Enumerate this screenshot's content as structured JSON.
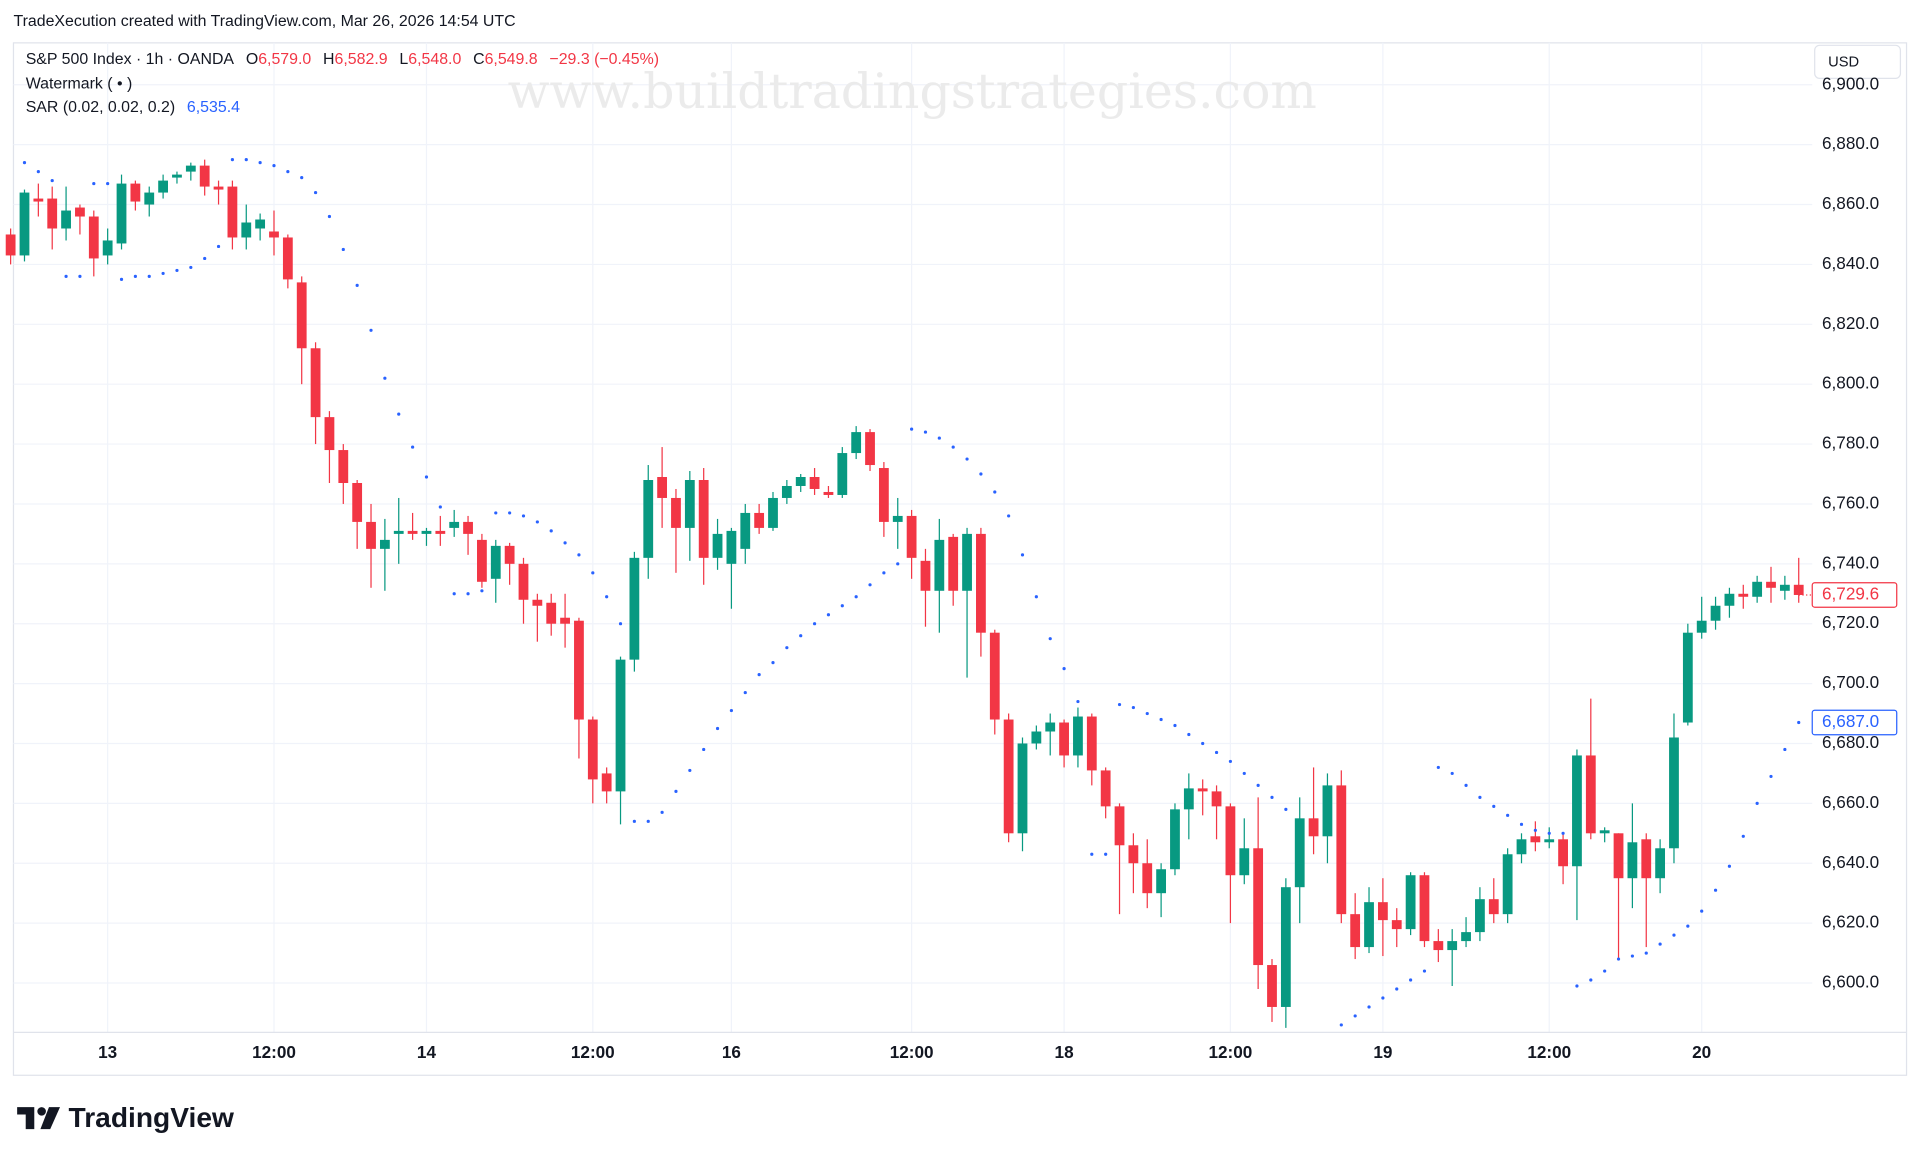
{
  "chart_data": {
    "type": "candlestick",
    "attribution": "TradeXecution created with TradingView.com, Mar 26, 2026 14:54 UTC",
    "symbol": "S&P 500 Index · 1h · OANDA",
    "ohlc_legend": {
      "o_label": "O",
      "o": "6,579.0",
      "h_label": "H",
      "h": "6,582.9",
      "l_label": "L",
      "l": "6,548.0",
      "c_label": "C",
      "c": "6,549.8",
      "change": "−29.3 (−0.45%)"
    },
    "watermark_legend": "Watermark ( • )",
    "sar_legend": {
      "name": "SAR (0.02, 0.02, 0.2)",
      "value": "6,535.4"
    },
    "watermark": "www.buildtradingstrategies.com",
    "currency": "USD",
    "brand": "TradingView",
    "up_color": "#089981",
    "down_color": "#f23645",
    "sar_color": "#2962ff",
    "grid": true,
    "ylim": [
      6583.5,
      6914
    ],
    "yticks": [
      {
        "value": 6600,
        "label": "6,600.0"
      },
      {
        "value": 6620,
        "label": "6,620.0"
      },
      {
        "value": 6640,
        "label": "6,640.0"
      },
      {
        "value": 6660,
        "label": "6,660.0"
      },
      {
        "value": 6680,
        "label": "6,680.0"
      },
      {
        "value": 6700,
        "label": "6,700.0"
      },
      {
        "value": 6720,
        "label": "6,720.0"
      },
      {
        "value": 6740,
        "label": "6,740.0"
      },
      {
        "value": 6760,
        "label": "6,760.0"
      },
      {
        "value": 6780,
        "label": "6,780.0"
      },
      {
        "value": 6800,
        "label": "6,800.0"
      },
      {
        "value": 6820,
        "label": "6,820.0"
      },
      {
        "value": 6840,
        "label": "6,840.0"
      },
      {
        "value": 6860,
        "label": "6,860.0"
      },
      {
        "value": 6880,
        "label": "6,880.0"
      },
      {
        "value": 6900,
        "label": "6,900.0"
      }
    ],
    "categories": [
      null,
      null,
      null,
      null,
      null,
      null,
      null,
      "13",
      null,
      null,
      null,
      null,
      null,
      null,
      null,
      null,
      null,
      null,
      null,
      "12:00",
      null,
      null,
      null,
      null,
      null,
      null,
      null,
      null,
      null,
      null,
      "14",
      null,
      null,
      null,
      null,
      null,
      null,
      null,
      null,
      null,
      null,
      null,
      "12:00",
      null,
      null,
      null,
      null,
      null,
      null,
      null,
      null,
      null,
      "16",
      null,
      null,
      null,
      null,
      null,
      null,
      null,
      null,
      null,
      null,
      null,
      null,
      "12:00",
      null,
      null,
      null,
      null,
      null,
      null,
      null,
      null,
      null,
      null,
      "18",
      null,
      null,
      null,
      null,
      null,
      null,
      null,
      null,
      null,
      null,
      null,
      "12:00",
      null,
      null,
      null,
      null,
      null,
      null,
      null,
      null,
      null,
      null,
      "19",
      null,
      null,
      null,
      null,
      null,
      null,
      null,
      null,
      null,
      null,
      null,
      "12:00",
      null,
      null,
      null,
      null,
      null,
      null,
      null,
      null,
      null,
      null,
      "20",
      null,
      null,
      null,
      null,
      null,
      null,
      null
    ],
    "open": [
      6850,
      6843,
      6862,
      6862,
      6852,
      6859,
      6856,
      6843,
      6847,
      6867,
      6860,
      6864,
      6869,
      6871,
      6873,
      6866,
      6866,
      6849,
      6852,
      6851,
      6849,
      6834,
      6812,
      6789,
      6778,
      6767,
      6754,
      6745,
      6750,
      6751,
      6750,
      6751,
      6752,
      6754,
      6748,
      6735,
      6746,
      6740,
      6728,
      6727,
      6722,
      6721,
      6688,
      6670,
      6664,
      6708,
      6742,
      6769,
      6762,
      6752,
      6768,
      6742,
      6740,
      6745,
      6757,
      6752,
      6762,
      6766,
      6769,
      6764,
      6763,
      6777,
      6784,
      6772,
      6754,
      6756,
      6741,
      6731,
      6749,
      6731,
      6750,
      6717,
      6688,
      6650,
      6680,
      6684,
      6687,
      6676,
      6689,
      6671,
      6659,
      6646,
      6640,
      6630,
      6638,
      6658,
      6665,
      6664,
      6659,
      6636,
      6645,
      6606,
      6592,
      6632,
      6655,
      6649,
      6666,
      6623,
      6612,
      6627,
      6621,
      6618,
      6636,
      6614,
      6611,
      6614,
      6617,
      6628,
      6623,
      6643,
      6649,
      6647,
      6648,
      6639,
      6676,
      6650,
      6650,
      6635,
      6648,
      6635,
      6645,
      6687,
      6717,
      6721,
      6726,
      6730,
      6729,
      6734,
      6731,
      6733
    ],
    "high": [
      6852,
      6865,
      6867,
      6866,
      6866,
      6860,
      6858,
      6852,
      6870,
      6868,
      6866,
      6870,
      6871,
      6874,
      6875,
      6868,
      6868,
      6860,
      6857,
      6858,
      6850,
      6836,
      6814,
      6791,
      6780,
      6768,
      6760,
      6755,
      6762,
      6757,
      6752,
      6756,
      6758,
      6756,
      6750,
      6748,
      6747,
      6742,
      6730,
      6730,
      6730,
      6722,
      6689,
      6672,
      6709,
      6744,
      6773,
      6779,
      6765,
      6771,
      6772,
      6755,
      6752,
      6760,
      6760,
      6764,
      6768,
      6770,
      6772,
      6766,
      6779,
      6786,
      6785,
      6774,
      6762,
      6758,
      6745,
      6755,
      6750,
      6752,
      6752,
      6718,
      6690,
      6682,
      6686,
      6690,
      6688,
      6692,
      6690,
      6672,
      6660,
      6650,
      6648,
      6640,
      6660,
      6670,
      6668,
      6666,
      6660,
      6655,
      6662,
      6608,
      6635,
      6662,
      6672,
      6670,
      6671,
      6630,
      6632,
      6635,
      6625,
      6637,
      6637,
      6618,
      6618,
      6622,
      6632,
      6635,
      6645,
      6650,
      6654,
      6652,
      6650,
      6678,
      6695,
      6652,
      6650,
      6660,
      6650,
      6648,
      6690,
      6720,
      6729,
      6729,
      6732,
      6733,
      6736,
      6739,
      6736,
      6742
    ],
    "low": [
      6840,
      6841,
      6856,
      6845,
      6848,
      6850,
      6836,
      6840,
      6845,
      6858,
      6856,
      6862,
      6867,
      6868,
      6863,
      6860,
      6845,
      6845,
      6848,
      6843,
      6832,
      6800,
      6780,
      6767,
      6760,
      6745,
      6732,
      6731,
      6740,
      6748,
      6746,
      6746,
      6749,
      6743,
      6732,
      6727,
      6733,
      6720,
      6714,
      6716,
      6712,
      6675,
      6660,
      6660,
      6653,
      6704,
      6735,
      6752,
      6737,
      6741,
      6733,
      6738,
      6725,
      6740,
      6750,
      6751,
      6760,
      6764,
      6763,
      6762,
      6762,
      6775,
      6771,
      6749,
      6745,
      6735,
      6719,
      6717,
      6726,
      6702,
      6709,
      6683,
      6647,
      6644,
      6678,
      6676,
      6672,
      6672,
      6666,
      6655,
      6623,
      6630,
      6625,
      6622,
      6636,
      6648,
      6656,
      6648,
      6620,
      6633,
      6598,
      6587,
      6585,
      6620,
      6643,
      6640,
      6620,
      6608,
      6610,
      6609,
      6612,
      6616,
      6612,
      6607,
      6599,
      6612,
      6614,
      6620,
      6620,
      6640,
      6644,
      6645,
      6633,
      6621,
      6648,
      6647,
      6608,
      6625,
      6612,
      6630,
      6640,
      6686,
      6715,
      6718,
      6722,
      6725,
      6727,
      6727,
      6728,
      6727
    ],
    "close": [
      6843,
      6864,
      6861,
      6852,
      6858,
      6856,
      6842,
      6848,
      6867,
      6861,
      6864,
      6868,
      6870,
      6873,
      6866,
      6865,
      6849,
      6854,
      6855,
      6849,
      6835,
      6812,
      6789,
      6778,
      6767,
      6754,
      6745,
      6748,
      6751,
      6750,
      6751,
      6750,
      6754,
      6750,
      6734,
      6746,
      6740,
      6728,
      6726,
      6720,
      6720,
      6688,
      6668,
      6664,
      6708,
      6742,
      6768,
      6762,
      6752,
      6768,
      6742,
      6750,
      6751,
      6757,
      6752,
      6762,
      6766,
      6769,
      6765,
      6763,
      6777,
      6784,
      6773,
      6754,
      6756,
      6742,
      6731,
      6748,
      6731,
      6750,
      6717,
      6688,
      6650,
      6680,
      6684,
      6687,
      6676,
      6689,
      6671,
      6659,
      6646,
      6640,
      6630,
      6638,
      6658,
      6665,
      6664,
      6659,
      6636,
      6645,
      6606,
      6592,
      6632,
      6655,
      6649,
      6666,
      6623,
      6612,
      6627,
      6621,
      6618,
      6636,
      6614,
      6611,
      6614,
      6617,
      6628,
      6623,
      6643,
      6648,
      6647,
      6648,
      6639,
      6676,
      6650,
      6651,
      6635,
      6647,
      6635,
      6645,
      6682,
      6717,
      6721,
      6726,
      6730,
      6729,
      6734,
      6732,
      6733,
      6729.6
    ],
    "sar": [
      null,
      6874,
      6871,
      6868,
      6836,
      6836,
      6867,
      6867,
      6835,
      6836,
      6836,
      6837,
      6838,
      6839,
      6842,
      6846,
      6875,
      6875,
      6874,
      6873,
      6871,
      6869,
      6864,
      6856,
      6845,
      6833,
      6818,
      6802,
      6790,
      6779,
      6769,
      6759,
      6730,
      6730,
      6731,
      6757,
      6757,
      6756,
      6754,
      6751,
      6747,
      6743,
      6737,
      6729,
      6720,
      6654,
      6654,
      6657,
      6664,
      6671,
      6678,
      6685,
      6691,
      6697,
      6703,
      6707,
      6712,
      6716,
      6720,
      6723,
      6726,
      6729,
      6733,
      6737,
      6740,
      6785,
      6784,
      6782,
      6779,
      6775,
      6770,
      6764,
      6756,
      6743,
      6729,
      6715,
      6705,
      6694,
      6643,
      6643,
      6693,
      6692,
      6690,
      6688,
      6686,
      6683,
      6680,
      6677,
      6674,
      6670,
      6666,
      6662,
      6658,
      null,
      null,
      null,
      6586,
      6589,
      6592,
      6595,
      6598,
      6601,
      6604,
      6672,
      6670,
      6666,
      6662,
      6659,
      6656,
      6653,
      6651,
      6650,
      6650,
      6599,
      6601,
      6604,
      6608,
      6609,
      6610,
      6613,
      6616,
      6619,
      6624,
      6631,
      6639,
      6649,
      6660,
      6669,
      6678,
      6687
    ],
    "last_close_label": "6,729.6",
    "last_sar_label": "6,687.0"
  }
}
